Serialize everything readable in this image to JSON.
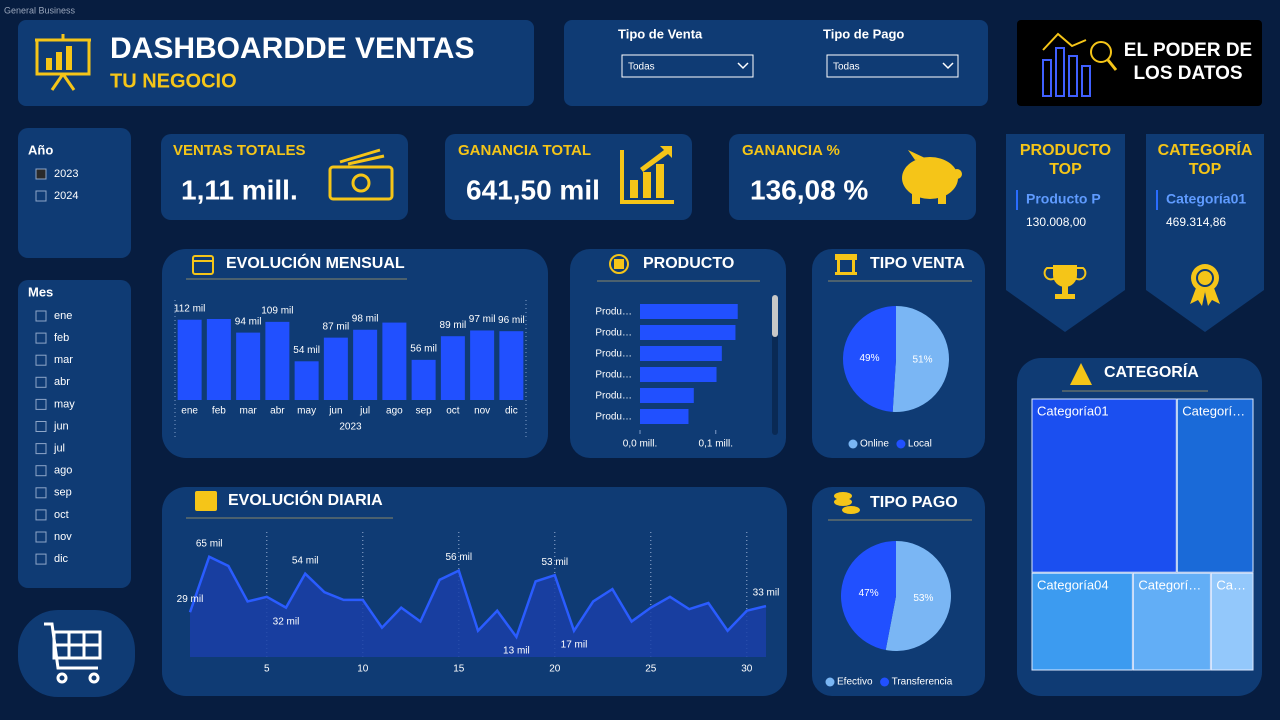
{
  "window_title": "General Business",
  "header": {
    "title": "DASHBOARDDE VENTAS",
    "subtitle": "TU NEGOCIO"
  },
  "filters": [
    {
      "label": "Tipo de Venta",
      "value": "Todas"
    },
    {
      "label": "Tipo de Pago",
      "value": "Todas"
    }
  ],
  "brand": "EL PODER DE LOS DATOS",
  "year_slicer": {
    "title": "Año",
    "options": [
      "2023",
      "2024"
    ],
    "selected": "2023"
  },
  "month_slicer": {
    "title": "Mes",
    "options": [
      "ene",
      "feb",
      "mar",
      "abr",
      "may",
      "jun",
      "jul",
      "ago",
      "sep",
      "oct",
      "nov",
      "dic"
    ]
  },
  "kpis": [
    {
      "label": "VENTAS TOTALES",
      "value": "1,11 mill."
    },
    {
      "label": "GANANCIA TOTAL",
      "value": "641,50 mil"
    },
    {
      "label": "GANANCIA %",
      "value": "136,08 %"
    }
  ],
  "top_cards": [
    {
      "title": "PRODUCTO TOP",
      "name": "Producto P",
      "value": "130.008,00"
    },
    {
      "title": "CATEGORÍA TOP",
      "name": "Categoría01",
      "value": "469.314,86"
    }
  ],
  "chart_data": [
    {
      "type": "bar",
      "title": "EVOLUCIÓN MENSUAL",
      "categories": [
        "ene",
        "feb",
        "mar",
        "abr",
        "may",
        "jun",
        "jul",
        "ago",
        "sep",
        "oct",
        "nov",
        "dic"
      ],
      "values": [
        112,
        113,
        94,
        109,
        54,
        87,
        98,
        108,
        56,
        89,
        97,
        96
      ],
      "value_labels": [
        "112 mil",
        null,
        "94 mil",
        "109 mil",
        "54 mil",
        "87 mil",
        "98 mil",
        null,
        "56 mil",
        "89 mil",
        "97 mil",
        "96 mil"
      ],
      "x_label": "2023",
      "color": "#2150ff"
    },
    {
      "type": "hbar",
      "title": "PRODUCTO",
      "categories": [
        "Produ…",
        "Produ…",
        "Produ…",
        "Produ…",
        "Produ…",
        "Produ…"
      ],
      "values": [
        0.129,
        0.126,
        0.108,
        0.101,
        0.071,
        0.064
      ],
      "xlim": [
        0,
        0.132
      ],
      "xticks": [
        {
          "value": 0,
          "label": "0,0 mill."
        },
        {
          "value": 0.1,
          "label": "0,1 mill."
        }
      ],
      "color": "#2150ff"
    },
    {
      "type": "pie",
      "title": "TIPO VENTA",
      "categories": [
        "Online",
        "Local"
      ],
      "values": [
        51,
        49
      ],
      "value_labels": [
        "51%",
        "49%"
      ],
      "colors": [
        "#7ab6f4",
        "#2150ff"
      ]
    },
    {
      "type": "area",
      "title": "EVOLUCIÓN DIARIA",
      "x": [
        1,
        2,
        3,
        4,
        5,
        6,
        7,
        8,
        9,
        10,
        11,
        12,
        13,
        14,
        15,
        16,
        17,
        18,
        19,
        20,
        21,
        22,
        23,
        24,
        25,
        26,
        27,
        28,
        29,
        30,
        31
      ],
      "values": [
        29,
        65,
        59,
        36,
        39,
        32,
        54,
        42,
        37,
        37,
        19,
        32,
        23,
        50,
        56,
        17,
        30,
        13,
        49,
        53,
        17,
        36,
        44,
        23,
        32,
        39,
        31,
        35,
        17,
        30,
        33
      ],
      "value_labels": [
        "29 mil",
        "65 mil",
        null,
        null,
        null,
        "32 mil",
        "54 mil",
        null,
        null,
        null,
        null,
        null,
        null,
        null,
        "56 mil",
        null,
        null,
        "13 mil",
        null,
        "53 mil",
        "17 mil",
        null,
        null,
        null,
        null,
        null,
        null,
        null,
        null,
        null,
        "33 mil"
      ],
      "xlim": [
        1,
        31
      ],
      "ylim": [
        0,
        70
      ],
      "xticks": [
        5,
        10,
        15,
        20,
        25,
        30
      ],
      "color": "#2a5cff"
    },
    {
      "type": "pie",
      "title": "TIPO PAGO",
      "categories": [
        "Efectivo",
        "Transferencia"
      ],
      "values": [
        53,
        47
      ],
      "value_labels": [
        "53%",
        "47%"
      ],
      "colors": [
        "#7ab6f4",
        "#2150ff"
      ]
    },
    {
      "type": "treemap",
      "title": "CATEGORÍA",
      "categories": [
        "Categoría01",
        "Categorí…",
        "Categoría04",
        "Categorí…",
        "Ca…"
      ],
      "values": [
        469314.86,
        247700,
        183800,
        141500,
        77200
      ],
      "colors": [
        "#1b4ff0",
        "#1a6ad8",
        "#3c9bf0",
        "#62aef6",
        "#93c8fb"
      ]
    }
  ]
}
